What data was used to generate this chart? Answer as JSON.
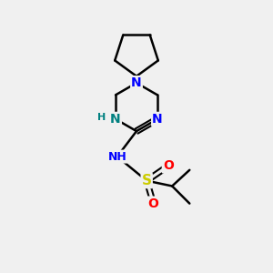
{
  "background_color": "#f0f0f0",
  "bond_color": "#000000",
  "atom_colors": {
    "N_blue": "#0000ff",
    "N_teal": "#008080",
    "S": "#cccc00",
    "O": "#ff0000"
  },
  "figsize": [
    3.0,
    3.0
  ],
  "dpi": 100,
  "xlim": [
    0,
    10
  ],
  "ylim": [
    0,
    10
  ]
}
